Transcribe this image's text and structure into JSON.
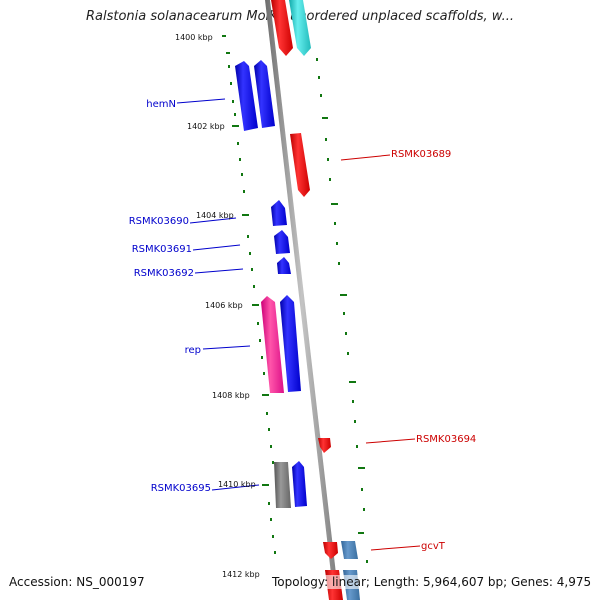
{
  "header": {
    "title": "Ralstonia solanacearum MolK2 unordered unplaced scaffolds, w..."
  },
  "footer": {
    "accession": "Accession: NS_000197",
    "summary": "Topology: linear; Length: 5,964,607 bp; Genes: 4,975"
  },
  "map": {
    "ticks": [
      {
        "label": "1400 kbp",
        "kbp": 1400
      },
      {
        "label": "1402 kbp",
        "kbp": 1402
      },
      {
        "label": "1404 kbp",
        "kbp": 1404
      },
      {
        "label": "1406 kbp",
        "kbp": 1406
      },
      {
        "label": "1408 kbp",
        "kbp": 1408
      },
      {
        "label": "1410 kbp",
        "kbp": 1410
      },
      {
        "label": "1412 kbp",
        "kbp": 1412
      }
    ],
    "colors": {
      "blue_gene": "#0000ee",
      "red_gene": "#ee0000",
      "pink_gene": "#ee1188",
      "gray_gene": "#777777",
      "cyan_gene": "#22cccc",
      "steel_gene": "#4477aa",
      "backbone": "#8a8a8a",
      "tick_green": "#116611",
      "label_blue": "#0000cc",
      "label_red": "#cc0000"
    },
    "left_labels": [
      {
        "text": "hemN",
        "id": "hemN"
      },
      {
        "text": "RSMK03690",
        "id": "RSMK03690"
      },
      {
        "text": "RSMK03691",
        "id": "RSMK03691"
      },
      {
        "text": "RSMK03692",
        "id": "RSMK03692"
      },
      {
        "text": "rep",
        "id": "rep"
      },
      {
        "text": "RSMK03695",
        "id": "RSMK03695"
      }
    ],
    "right_labels": [
      {
        "text": "RSMK03689",
        "id": "RSMK03689"
      },
      {
        "text": "RSMK03694",
        "id": "RSMK03694"
      },
      {
        "text": "gcvT",
        "id": "gcvT"
      }
    ]
  }
}
